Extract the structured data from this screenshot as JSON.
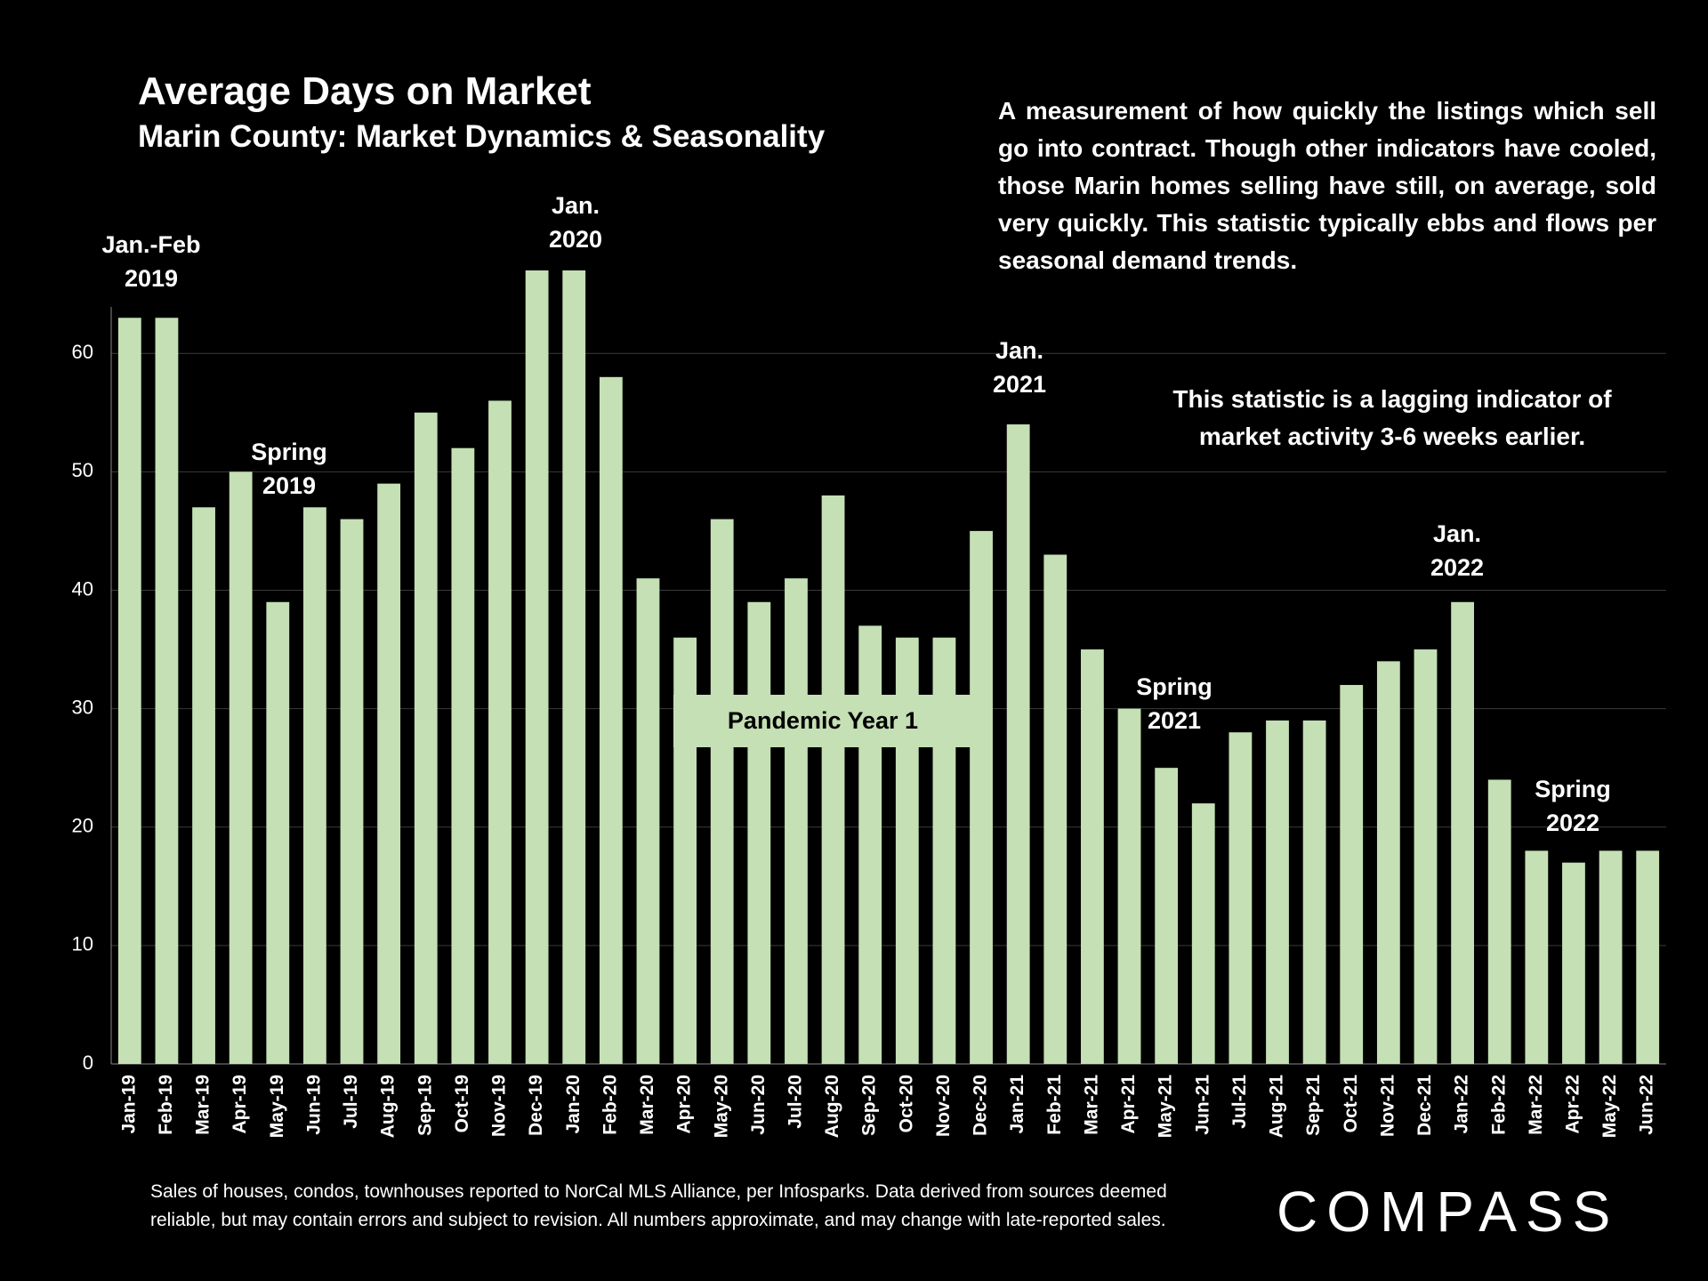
{
  "chart_data": {
    "type": "bar",
    "title": "Average Days on Market",
    "subtitle": "Marin County: Market Dynamics & Seasonality",
    "description": "A measurement of how quickly the listings which sell go into contract. Though other indicators have cooled, those Marin homes selling have still, on average, sold very quickly. This statistic typically ebbs and flows per seasonal demand trends.",
    "note": "This statistic is a lagging indicator of market activity 3-6 weeks earlier.",
    "band_label": "Pandemic Year 1",
    "annotations": [
      [
        "Jan.-Feb",
        "2019"
      ],
      [
        "Spring",
        "2019"
      ],
      [
        "Jan.",
        "2020"
      ],
      [
        "Jan.",
        "2021"
      ],
      [
        "Spring",
        "2021"
      ],
      [
        "Jan.",
        "2022"
      ],
      [
        "Spring",
        "2022"
      ]
    ],
    "footnote": "Sales of houses, condos, townhouses reported to NorCal MLS Alliance, per Infosparks. Data derived from sources deemed reliable, but may contain errors and subject to revision. All numbers approximate, and may change with late-reported sales.",
    "logo": "COMPASS",
    "categories": [
      "Jan-19",
      "Feb-19",
      "Mar-19",
      "Apr-19",
      "May-19",
      "Jun-19",
      "Jul-19",
      "Aug-19",
      "Sep-19",
      "Oct-19",
      "Nov-19",
      "Dec-19",
      "Jan-20",
      "Feb-20",
      "Mar-20",
      "Apr-20",
      "May-20",
      "Jun-20",
      "Jul-20",
      "Aug-20",
      "Sep-20",
      "Oct-20",
      "Nov-20",
      "Dec-20",
      "Jan-21",
      "Feb-21",
      "Mar-21",
      "Apr-21",
      "May-21",
      "Jun-21",
      "Jul-21",
      "Aug-21",
      "Sep-21",
      "Oct-21",
      "Nov-21",
      "Dec-21",
      "Jan-22",
      "Feb-22",
      "Mar-22",
      "Apr-22",
      "May-22",
      "Jun-22"
    ],
    "values": [
      63,
      63,
      47,
      50,
      39,
      47,
      46,
      49,
      55,
      52,
      56,
      67,
      67,
      58,
      41,
      36,
      46,
      39,
      41,
      48,
      37,
      36,
      36,
      45,
      54,
      43,
      35,
      30,
      25,
      22,
      28,
      29,
      29,
      32,
      34,
      35,
      39,
      24,
      18,
      17,
      18,
      18
    ],
    "color": "#c5e0b4",
    "ylim": [
      0,
      67
    ],
    "yticks": [
      0,
      10,
      20,
      30,
      40,
      50,
      60
    ],
    "grid": true
  }
}
